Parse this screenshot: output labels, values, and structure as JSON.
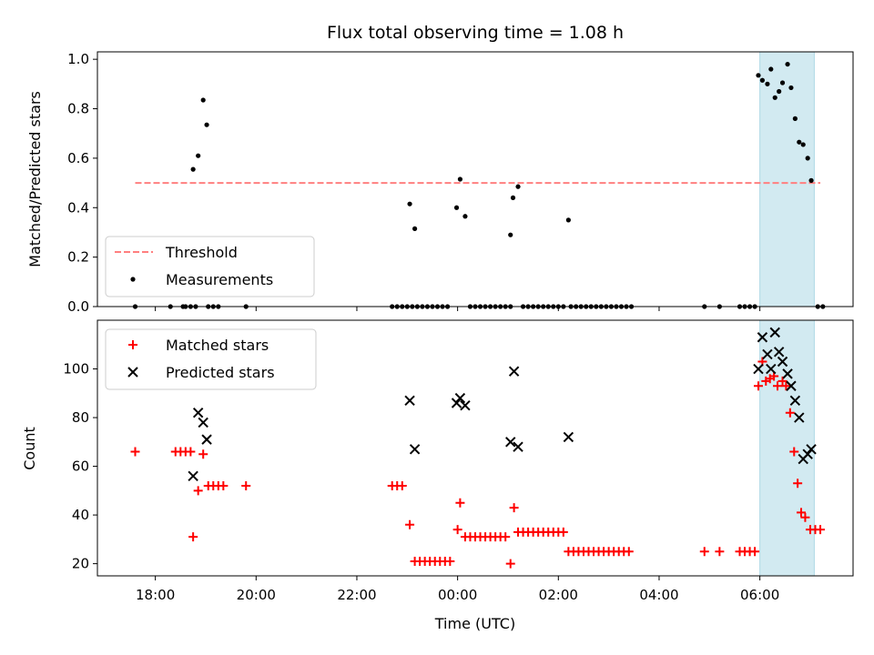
{
  "colors": {
    "threshold": "#ff7f7f",
    "measurement": "#000000",
    "matched": "#ff0000",
    "predicted": "#000000",
    "highlight": "#add8e6"
  },
  "chart_data": [
    {
      "type": "scatter",
      "title": "Flux total observing time = 1.08 h",
      "ylabel": "Matched/Predicted stars",
      "xlabel": "",
      "x_unit": "hours since 00:00 UTC",
      "xlim": [
        -7.15,
        7.85
      ],
      "ylim": [
        0,
        1.03
      ],
      "yticks": [
        0.0,
        0.2,
        0.4,
        0.6,
        0.8,
        1.0
      ],
      "ytick_labels": [
        "0.0",
        "0.2",
        "0.4",
        "0.6",
        "0.8",
        "1.0"
      ],
      "highlight_span": [
        6.0,
        7.08
      ],
      "legend": {
        "placement": "lower-left",
        "entries": [
          "Threshold",
          "Measurements"
        ]
      },
      "threshold": {
        "name": "Threshold",
        "value": 0.5,
        "x_range": [
          -6.4,
          7.2
        ]
      },
      "series": [
        {
          "name": "Measurements",
          "points": [
            [
              -6.4,
              0
            ],
            [
              -5.7,
              0
            ],
            [
              -5.45,
              0
            ],
            [
              -5.4,
              0
            ],
            [
              -5.3,
              0
            ],
            [
              -5.2,
              0
            ],
            [
              -4.95,
              0
            ],
            [
              -4.85,
              0
            ],
            [
              -4.75,
              0
            ],
            [
              -4.2,
              0
            ],
            [
              -5.25,
              0.555
            ],
            [
              -5.15,
              0.61
            ],
            [
              -5.05,
              0.835
            ],
            [
              -4.98,
              0.735
            ],
            [
              -1.3,
              0
            ],
            [
              -1.2,
              0
            ],
            [
              -1.1,
              0
            ],
            [
              -1.0,
              0
            ],
            [
              -0.9,
              0
            ],
            [
              -0.8,
              0
            ],
            [
              -0.7,
              0
            ],
            [
              -0.6,
              0
            ],
            [
              -0.5,
              0
            ],
            [
              -0.4,
              0
            ],
            [
              -0.3,
              0
            ],
            [
              -0.2,
              0
            ],
            [
              -0.95,
              0.415
            ],
            [
              -0.85,
              0.315
            ],
            [
              -0.02,
              0.4
            ],
            [
              0.05,
              0.515
            ],
            [
              0.15,
              0.365
            ],
            [
              0.25,
              0
            ],
            [
              0.35,
              0
            ],
            [
              0.45,
              0
            ],
            [
              0.55,
              0
            ],
            [
              0.65,
              0
            ],
            [
              0.75,
              0
            ],
            [
              0.85,
              0
            ],
            [
              0.95,
              0
            ],
            [
              1.05,
              0
            ],
            [
              1.05,
              0.29
            ],
            [
              1.1,
              0.44
            ],
            [
              1.2,
              0.485
            ],
            [
              1.3,
              0
            ],
            [
              1.4,
              0
            ],
            [
              1.5,
              0
            ],
            [
              1.6,
              0
            ],
            [
              1.7,
              0
            ],
            [
              1.8,
              0
            ],
            [
              1.9,
              0
            ],
            [
              2.0,
              0
            ],
            [
              2.1,
              0
            ],
            [
              2.2,
              0.35
            ],
            [
              2.25,
              0
            ],
            [
              2.35,
              0
            ],
            [
              2.45,
              0
            ],
            [
              2.55,
              0
            ],
            [
              2.65,
              0
            ],
            [
              2.75,
              0
            ],
            [
              2.85,
              0
            ],
            [
              2.95,
              0
            ],
            [
              3.05,
              0
            ],
            [
              3.15,
              0
            ],
            [
              3.25,
              0
            ],
            [
              3.35,
              0
            ],
            [
              3.45,
              0
            ],
            [
              4.9,
              0
            ],
            [
              5.2,
              0
            ],
            [
              5.6,
              0
            ],
            [
              5.7,
              0
            ],
            [
              5.8,
              0
            ],
            [
              5.9,
              0
            ],
            [
              5.97,
              0.935
            ],
            [
              6.05,
              0.915
            ],
            [
              6.15,
              0.9
            ],
            [
              6.22,
              0.96
            ],
            [
              6.3,
              0.845
            ],
            [
              6.38,
              0.87
            ],
            [
              6.45,
              0.905
            ],
            [
              6.55,
              0.98
            ],
            [
              6.62,
              0.885
            ],
            [
              6.7,
              0.76
            ],
            [
              6.78,
              0.665
            ],
            [
              6.86,
              0.655
            ],
            [
              6.95,
              0.6
            ],
            [
              7.02,
              0.51
            ],
            [
              7.15,
              0
            ],
            [
              7.25,
              0
            ]
          ]
        }
      ]
    },
    {
      "type": "scatter",
      "title": "",
      "ylabel": "Count",
      "xlabel": "Time (UTC)",
      "x_unit": "hours since 00:00 UTC",
      "xlim": [
        -7.15,
        7.85
      ],
      "ylim": [
        15,
        120
      ],
      "yticks": [
        20,
        40,
        60,
        80,
        100
      ],
      "ytick_labels": [
        "20",
        "40",
        "60",
        "80",
        "100"
      ],
      "xticks": [
        -6,
        -4,
        -2,
        0,
        2,
        4,
        6
      ],
      "xtick_labels": [
        "18:00",
        "20:00",
        "22:00",
        "00:00",
        "02:00",
        "04:00",
        "06:00"
      ],
      "highlight_span": [
        6.0,
        7.08
      ],
      "legend": {
        "placement": "upper-left",
        "entries": [
          "Matched stars",
          "Predicted stars"
        ]
      },
      "series": [
        {
          "name": "Matched stars",
          "points": [
            [
              -6.4,
              66
            ],
            [
              -5.6,
              66
            ],
            [
              -5.5,
              66
            ],
            [
              -5.4,
              66
            ],
            [
              -5.3,
              66
            ],
            [
              -5.25,
              31
            ],
            [
              -5.15,
              50
            ],
            [
              -5.05,
              65
            ],
            [
              -4.95,
              52
            ],
            [
              -4.85,
              52
            ],
            [
              -4.75,
              52
            ],
            [
              -4.65,
              52
            ],
            [
              -4.2,
              52
            ],
            [
              -1.3,
              52
            ],
            [
              -1.2,
              52
            ],
            [
              -1.1,
              52
            ],
            [
              -0.95,
              36
            ],
            [
              -0.85,
              21
            ],
            [
              -0.75,
              21
            ],
            [
              -0.65,
              21
            ],
            [
              -0.55,
              21
            ],
            [
              -0.45,
              21
            ],
            [
              -0.35,
              21
            ],
            [
              -0.25,
              21
            ],
            [
              -0.15,
              21
            ],
            [
              0.0,
              34
            ],
            [
              0.05,
              45
            ],
            [
              0.15,
              31
            ],
            [
              0.25,
              31
            ],
            [
              0.35,
              31
            ],
            [
              0.45,
              31
            ],
            [
              0.55,
              31
            ],
            [
              0.65,
              31
            ],
            [
              0.75,
              31
            ],
            [
              0.85,
              31
            ],
            [
              0.95,
              31
            ],
            [
              1.05,
              20
            ],
            [
              1.12,
              43
            ],
            [
              1.2,
              33
            ],
            [
              1.3,
              33
            ],
            [
              1.4,
              33
            ],
            [
              1.5,
              33
            ],
            [
              1.6,
              33
            ],
            [
              1.7,
              33
            ],
            [
              1.8,
              33
            ],
            [
              1.9,
              33
            ],
            [
              2.0,
              33
            ],
            [
              2.1,
              33
            ],
            [
              2.2,
              25
            ],
            [
              2.3,
              25
            ],
            [
              2.4,
              25
            ],
            [
              2.5,
              25
            ],
            [
              2.6,
              25
            ],
            [
              2.7,
              25
            ],
            [
              2.8,
              25
            ],
            [
              2.9,
              25
            ],
            [
              3.0,
              25
            ],
            [
              3.1,
              25
            ],
            [
              3.2,
              25
            ],
            [
              3.3,
              25
            ],
            [
              3.4,
              25
            ],
            [
              4.9,
              25
            ],
            [
              5.2,
              25
            ],
            [
              5.6,
              25
            ],
            [
              5.7,
              25
            ],
            [
              5.8,
              25
            ],
            [
              5.9,
              25
            ],
            [
              5.97,
              93
            ],
            [
              6.05,
              103
            ],
            [
              6.12,
              95
            ],
            [
              6.2,
              96
            ],
            [
              6.28,
              97
            ],
            [
              6.35,
              93
            ],
            [
              6.45,
              95
            ],
            [
              6.52,
              93
            ],
            [
              6.6,
              82
            ],
            [
              6.68,
              66
            ],
            [
              6.75,
              53
            ],
            [
              6.82,
              41
            ],
            [
              6.9,
              39
            ],
            [
              7.0,
              34
            ],
            [
              7.1,
              34
            ],
            [
              7.2,
              34
            ]
          ]
        },
        {
          "name": "Predicted stars",
          "points": [
            [
              -5.25,
              56
            ],
            [
              -5.15,
              82
            ],
            [
              -5.05,
              78
            ],
            [
              -4.98,
              71
            ],
            [
              -0.95,
              87
            ],
            [
              -0.85,
              67
            ],
            [
              -0.02,
              86
            ],
            [
              0.05,
              88
            ],
            [
              0.15,
              85
            ],
            [
              1.05,
              70
            ],
            [
              1.12,
              99
            ],
            [
              1.2,
              68
            ],
            [
              2.2,
              72
            ],
            [
              5.97,
              100
            ],
            [
              6.05,
              113
            ],
            [
              6.15,
              106
            ],
            [
              6.22,
              100
            ],
            [
              6.3,
              115
            ],
            [
              6.38,
              107
            ],
            [
              6.45,
              103
            ],
            [
              6.55,
              98
            ],
            [
              6.62,
              93
            ],
            [
              6.7,
              87
            ],
            [
              6.78,
              80
            ],
            [
              6.86,
              63
            ],
            [
              6.95,
              65
            ],
            [
              7.02,
              67
            ]
          ]
        }
      ]
    }
  ]
}
